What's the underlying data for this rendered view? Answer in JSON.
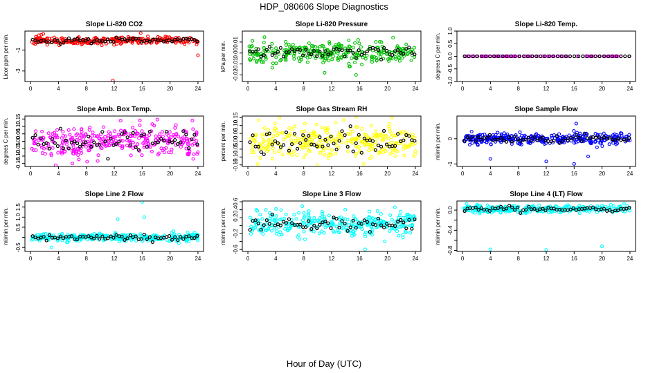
{
  "figure": {
    "title": "HDP_080606  Slope Diagnostics",
    "xlabel": "Hour of Day (UTC)"
  },
  "chart_data": [
    {
      "type": "scatter",
      "title": "Slope Li-820 CO2",
      "ylabel": "Licor ppm per min.",
      "xlim": [
        -0.8,
        24.8
      ],
      "xticks": [
        0,
        4,
        8,
        12,
        16,
        20,
        24
      ],
      "xtick_labels": [
        "0",
        "4",
        "8",
        "12",
        "16",
        "20",
        "24"
      ],
      "ylim": [
        -4.0,
        0.8
      ],
      "yticks": [
        -3,
        -1
      ],
      "ytick_labels": [
        "-3",
        "-1"
      ],
      "color": "#ff0000",
      "center": -0.1,
      "spread": 0.2,
      "outliers": [
        [
          1.2,
          0.4
        ],
        [
          11.8,
          -3.9
        ],
        [
          15.8,
          0.6
        ],
        [
          24.0,
          -1.5
        ]
      ],
      "n_color": 280,
      "n_black": 60,
      "seed": 11
    },
    {
      "type": "scatter",
      "title": "Slope Li-820 Pressure",
      "ylabel": "kPa per min.",
      "xlim": [
        -0.8,
        24.8
      ],
      "xticks": [
        0,
        4,
        8,
        12,
        16,
        20,
        24
      ],
      "xtick_labels": [
        "0",
        "4",
        "8",
        "12",
        "16",
        "20",
        "24"
      ],
      "ylim": [
        -0.026,
        0.02
      ],
      "yticks": [
        -0.02,
        -0.01,
        0.0,
        0.01
      ],
      "ytick_labels": [
        "-0.02",
        "-0.01",
        "0.00",
        "0.01"
      ],
      "color": "#00c000",
      "center": 0.0,
      "spread": 0.005,
      "outliers": [
        [
          15.5,
          -0.02
        ],
        [
          15.8,
          0.012
        ],
        [
          20.8,
          0.014
        ],
        [
          11.0,
          -0.018
        ]
      ],
      "n_color": 300,
      "n_black": 60,
      "seed": 22
    },
    {
      "type": "scatter",
      "title": "Slope Li-820 Temp.",
      "ylabel": "degrees C per min.",
      "xlim": [
        -0.8,
        24.8
      ],
      "xticks": [
        0,
        4,
        8,
        12,
        16,
        20,
        24
      ],
      "xtick_labels": [
        "0",
        "4",
        "8",
        "12",
        "16",
        "20",
        "24"
      ],
      "ylim": [
        -1.0,
        1.0
      ],
      "yticks": [
        -1.0,
        -0.5,
        0.0,
        0.5,
        1.0
      ],
      "ytick_labels": [
        "-1.0",
        "-0.5",
        "0.0",
        "0.5",
        "1.0"
      ],
      "color": "#ff00ff",
      "center": 0.0,
      "spread": 0.0,
      "outliers": [],
      "n_color": 90,
      "n_black": 40,
      "seed": 33
    },
    {
      "type": "scatter",
      "title": "Slope Amb. Box Temp.",
      "ylabel": "degrees C per min.",
      "xlim": [
        -0.8,
        24.8
      ],
      "xticks": [
        0,
        4,
        8,
        12,
        16,
        20,
        24
      ],
      "xtick_labels": [
        "0",
        "4",
        "8",
        "12",
        "16",
        "20",
        "24"
      ],
      "ylim": [
        -0.17,
        0.17
      ],
      "yticks": [
        -0.15,
        -0.1,
        -0.05,
        0.0,
        0.05,
        0.1,
        0.15
      ],
      "ytick_labels": [
        "-0.15",
        "-0.10",
        "-0.05",
        "0.00",
        "0.05",
        "0.10",
        "0.15"
      ],
      "color": "#ff00ff",
      "center": 0.0,
      "spread": 0.06,
      "outliers": [
        [
          6.0,
          -0.15
        ],
        [
          23.2,
          0.14
        ]
      ],
      "n_color": 320,
      "n_black": 60,
      "seed": 44
    },
    {
      "type": "scatter",
      "title": "Slope Gas Stream RH",
      "ylabel": "percent per min.",
      "xlim": [
        -0.8,
        24.8
      ],
      "xticks": [
        0,
        4,
        8,
        12,
        16,
        20,
        24
      ],
      "xtick_labels": [
        "0",
        "4",
        "8",
        "12",
        "16",
        "20",
        "24"
      ],
      "ylim": [
        -0.16,
        0.16
      ],
      "yticks": [
        -0.15,
        -0.1,
        -0.05,
        0.0,
        0.05,
        0.1,
        0.15
      ],
      "ytick_labels": [
        "-0.15",
        "-0.10",
        "-0.05",
        "0.00",
        "0.05",
        "0.10",
        "0.15"
      ],
      "color": "#ffff00",
      "center": 0.0,
      "spread": 0.06,
      "outliers": [
        [
          4.5,
          0.15
        ],
        [
          20.6,
          0.15
        ]
      ],
      "n_color": 320,
      "n_black": 60,
      "seed": 55
    },
    {
      "type": "scatter",
      "title": "Slope Sample Flow",
      "ylabel": "ml/min per min.",
      "xlim": [
        -0.8,
        24.8
      ],
      "xticks": [
        0,
        4,
        8,
        12,
        16,
        20,
        24
      ],
      "xtick_labels": [
        "0",
        "4",
        "8",
        "12",
        "16",
        "20",
        "24"
      ],
      "ylim": [
        -1.1,
        0.9
      ],
      "yticks": [
        -1.0,
        0.0
      ],
      "ytick_labels": [
        "-1",
        "0"
      ],
      "color": "#0000ff",
      "center": 0.0,
      "spread": 0.12,
      "outliers": [
        [
          16.0,
          -1.0
        ],
        [
          16.3,
          0.6
        ],
        [
          4.0,
          -0.8
        ],
        [
          12.0,
          -0.9
        ],
        [
          18.0,
          -0.7
        ]
      ],
      "n_color": 320,
      "n_black": 60,
      "seed": 66
    },
    {
      "type": "scatter",
      "title": "Slope Line 2 Flow",
      "ylabel": "ml/min per min.",
      "xlim": [
        -0.8,
        24.8
      ],
      "xticks": [
        0,
        4,
        8,
        12,
        16,
        20,
        24
      ],
      "xtick_labels": [
        "0",
        "4",
        "8",
        "12",
        "16",
        "20",
        "24"
      ],
      "ylim": [
        -0.7,
        1.8
      ],
      "yticks": [
        -0.5,
        0.0,
        0.5,
        1.0,
        1.5
      ],
      "ytick_labels": [
        "-0.5",
        "0.5",
        "1.0",
        "1.5"
      ],
      "ytick_show": [
        -0.5,
        0.5,
        1.0,
        1.5
      ],
      "color": "#00ffff",
      "center": 0.0,
      "spread": 0.12,
      "outliers": [
        [
          16.0,
          1.75
        ],
        [
          16.3,
          1.0
        ],
        [
          3.0,
          -0.5
        ],
        [
          12.5,
          0.9
        ]
      ],
      "n_color": 300,
      "n_black": 60,
      "seed": 77
    },
    {
      "type": "scatter",
      "title": "Slope Line 3 Flow",
      "ylabel": "ml/min per min.",
      "xlim": [
        -0.8,
        24.8
      ],
      "xticks": [
        0,
        4,
        8,
        12,
        16,
        20,
        24
      ],
      "xtick_labels": [
        "0",
        "4",
        "8",
        "12",
        "16",
        "20",
        "24"
      ],
      "ylim": [
        -0.65,
        0.62
      ],
      "yticks": [
        -0.6,
        -0.4,
        -0.2,
        0.0,
        0.2,
        0.4,
        0.6
      ],
      "ytick_labels": [
        "-0.6",
        "-0.2",
        "0.2",
        "0.4",
        "0.6"
      ],
      "ytick_show": [
        -0.6,
        -0.2,
        0.2,
        0.4,
        0.6
      ],
      "color": "#00ffff",
      "center": 0.05,
      "spread": 0.17,
      "outliers": [
        [
          16.8,
          -0.6
        ],
        [
          1.2,
          0.4
        ]
      ],
      "n_color": 320,
      "n_black": 60,
      "seed": 88
    },
    {
      "type": "scatter",
      "title": "Slope Line 4 (LT) Flow",
      "ylabel": "ml/min per min.",
      "xlim": [
        -0.8,
        24.8
      ],
      "xticks": [
        0,
        4,
        8,
        12,
        16,
        20,
        24
      ],
      "xtick_labels": [
        "0",
        "4",
        "8",
        "12",
        "16",
        "20",
        "24"
      ],
      "ylim": [
        -0.82,
        0.18
      ],
      "yticks": [
        -0.8,
        -0.6,
        -0.4,
        -0.2,
        0.0
      ],
      "ytick_labels": [
        "-0.8",
        "-0.4",
        "0.0"
      ],
      "ytick_show": [
        -0.8,
        -0.4,
        0.0
      ],
      "color": "#00ffff",
      "center": 0.02,
      "spread": 0.04,
      "outliers": [
        [
          4.0,
          -0.78
        ],
        [
          12.0,
          -0.79
        ],
        [
          20.0,
          -0.72
        ]
      ],
      "n_color": 300,
      "n_black": 60,
      "seed": 99
    }
  ]
}
